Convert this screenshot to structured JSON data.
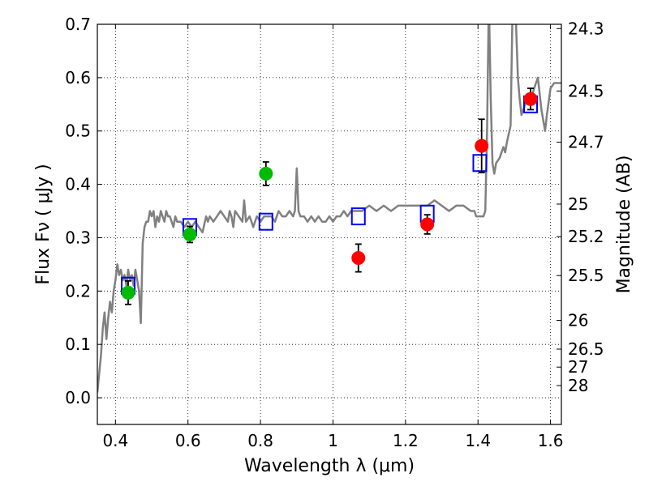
{
  "chart_data": {
    "type": "scatter",
    "xlabel": "Wavelength  λ (μm)",
    "ylabel": "Flux  Fν  ( μJy )",
    "y2label": "Magnitude (AB)",
    "xlim": [
      0.35,
      1.63
    ],
    "ylim": [
      -0.05,
      0.7
    ],
    "x_ticks": [
      0.4,
      0.6,
      0.8,
      1.0,
      1.2,
      1.4,
      1.6
    ],
    "x_tick_labels": [
      "0.4",
      "0.6",
      "0.8",
      "1",
      "1.2",
      "1.4",
      "1.6"
    ],
    "y_ticks": [
      0.0,
      0.1,
      0.2,
      0.3,
      0.4,
      0.5,
      0.6,
      0.7
    ],
    "y_tick_labels": [
      "0.0",
      "0.1",
      "0.2",
      "0.3",
      "0.4",
      "0.5",
      "0.6",
      "0.7"
    ],
    "magnitude_ticks": [
      {
        "label": "24.3",
        "flux": 0.692
      },
      {
        "label": "24.5",
        "flux": 0.575
      },
      {
        "label": "24.7",
        "flux": 0.479
      },
      {
        "label": "25",
        "flux": 0.363
      },
      {
        "label": "25.2",
        "flux": 0.302
      },
      {
        "label": "25.5",
        "flux": 0.229
      },
      {
        "label": "26",
        "flux": 0.145
      },
      {
        "label": "26.5",
        "flux": 0.0912
      },
      {
        "label": "27",
        "flux": 0.0575
      },
      {
        "label": "28",
        "flux": 0.0229
      }
    ],
    "grid": true,
    "series": [
      {
        "kind": "line",
        "color": "#808080",
        "points": [
          [
            0.35,
            0.01
          ],
          [
            0.36,
            0.08
          ],
          [
            0.365,
            0.13
          ],
          [
            0.37,
            0.16
          ],
          [
            0.375,
            0.11
          ],
          [
            0.38,
            0.15
          ],
          [
            0.385,
            0.18
          ],
          [
            0.39,
            0.16
          ],
          [
            0.395,
            0.2
          ],
          [
            0.4,
            0.22
          ],
          [
            0.405,
            0.25
          ],
          [
            0.41,
            0.23
          ],
          [
            0.415,
            0.24
          ],
          [
            0.42,
            0.22
          ],
          [
            0.425,
            0.23
          ],
          [
            0.43,
            0.21
          ],
          [
            0.435,
            0.24
          ],
          [
            0.44,
            0.22
          ],
          [
            0.445,
            0.23
          ],
          [
            0.45,
            0.21
          ],
          [
            0.455,
            0.24
          ],
          [
            0.46,
            0.22
          ],
          [
            0.465,
            0.2
          ],
          [
            0.47,
            0.14
          ],
          [
            0.475,
            0.29
          ],
          [
            0.48,
            0.32
          ],
          [
            0.485,
            0.33
          ],
          [
            0.49,
            0.33
          ],
          [
            0.495,
            0.35
          ],
          [
            0.5,
            0.34
          ],
          [
            0.505,
            0.35
          ],
          [
            0.51,
            0.32
          ],
          [
            0.515,
            0.34
          ],
          [
            0.52,
            0.33
          ],
          [
            0.525,
            0.35
          ],
          [
            0.53,
            0.34
          ],
          [
            0.535,
            0.33
          ],
          [
            0.54,
            0.35
          ],
          [
            0.545,
            0.34
          ],
          [
            0.55,
            0.34
          ],
          [
            0.555,
            0.33
          ],
          [
            0.56,
            0.32
          ],
          [
            0.565,
            0.34
          ],
          [
            0.57,
            0.33
          ],
          [
            0.58,
            0.33
          ],
          [
            0.59,
            0.32
          ],
          [
            0.6,
            0.33
          ],
          [
            0.61,
            0.32
          ],
          [
            0.62,
            0.33
          ],
          [
            0.63,
            0.32
          ],
          [
            0.64,
            0.31
          ],
          [
            0.65,
            0.34
          ],
          [
            0.655,
            0.33
          ],
          [
            0.66,
            0.34
          ],
          [
            0.67,
            0.33
          ],
          [
            0.68,
            0.34
          ],
          [
            0.69,
            0.35
          ],
          [
            0.7,
            0.34
          ],
          [
            0.71,
            0.33
          ],
          [
            0.715,
            0.35
          ],
          [
            0.72,
            0.34
          ],
          [
            0.725,
            0.32
          ],
          [
            0.73,
            0.35
          ],
          [
            0.74,
            0.34
          ],
          [
            0.75,
            0.33
          ],
          [
            0.755,
            0.37
          ],
          [
            0.76,
            0.33
          ],
          [
            0.77,
            0.34
          ],
          [
            0.78,
            0.32
          ],
          [
            0.79,
            0.34
          ],
          [
            0.8,
            0.33
          ],
          [
            0.81,
            0.34
          ],
          [
            0.82,
            0.34
          ],
          [
            0.83,
            0.34
          ],
          [
            0.84,
            0.33
          ],
          [
            0.85,
            0.35
          ],
          [
            0.86,
            0.34
          ],
          [
            0.87,
            0.34
          ],
          [
            0.88,
            0.35
          ],
          [
            0.89,
            0.34
          ],
          [
            0.895,
            0.35
          ],
          [
            0.9,
            0.43
          ],
          [
            0.905,
            0.35
          ],
          [
            0.91,
            0.34
          ],
          [
            0.92,
            0.34
          ],
          [
            0.93,
            0.33
          ],
          [
            0.94,
            0.34
          ],
          [
            0.95,
            0.33
          ],
          [
            0.96,
            0.34
          ],
          [
            0.97,
            0.33
          ],
          [
            0.98,
            0.33
          ],
          [
            0.99,
            0.34
          ],
          [
            1.0,
            0.33
          ],
          [
            1.01,
            0.34
          ],
          [
            1.02,
            0.34
          ],
          [
            1.03,
            0.35
          ],
          [
            1.04,
            0.34
          ],
          [
            1.05,
            0.35
          ],
          [
            1.06,
            0.35
          ],
          [
            1.08,
            0.35
          ],
          [
            1.1,
            0.36
          ],
          [
            1.12,
            0.35
          ],
          [
            1.14,
            0.36
          ],
          [
            1.16,
            0.35
          ],
          [
            1.18,
            0.36
          ],
          [
            1.2,
            0.36
          ],
          [
            1.22,
            0.36
          ],
          [
            1.24,
            0.36
          ],
          [
            1.26,
            0.36
          ],
          [
            1.28,
            0.37
          ],
          [
            1.3,
            0.36
          ],
          [
            1.32,
            0.35
          ],
          [
            1.34,
            0.36
          ],
          [
            1.36,
            0.36
          ],
          [
            1.38,
            0.35
          ],
          [
            1.39,
            0.35
          ],
          [
            1.395,
            0.34
          ],
          [
            1.41,
            0.34
          ],
          [
            1.415,
            0.34
          ],
          [
            1.42,
            0.35
          ],
          [
            1.425,
            0.5
          ],
          [
            1.43,
            0.75
          ],
          [
            1.435,
            0.56
          ],
          [
            1.44,
            0.44
          ],
          [
            1.445,
            0.42
          ],
          [
            1.45,
            0.44
          ],
          [
            1.46,
            0.45
          ],
          [
            1.47,
            0.47
          ],
          [
            1.475,
            0.46
          ],
          [
            1.48,
            0.48
          ],
          [
            1.49,
            0.51
          ],
          [
            1.495,
            0.72
          ],
          [
            1.5,
            0.8
          ],
          [
            1.505,
            0.7
          ],
          [
            1.51,
            0.6
          ],
          [
            1.515,
            0.56
          ],
          [
            1.52,
            0.53
          ],
          [
            1.53,
            0.55
          ],
          [
            1.54,
            0.56
          ],
          [
            1.55,
            0.57
          ],
          [
            1.56,
            0.59
          ],
          [
            1.565,
            0.6
          ],
          [
            1.57,
            0.57
          ],
          [
            1.575,
            0.54
          ],
          [
            1.58,
            0.52
          ],
          [
            1.585,
            0.5
          ],
          [
            1.59,
            0.53
          ],
          [
            1.6,
            0.58
          ],
          [
            1.61,
            0.59
          ],
          [
            1.62,
            0.59
          ],
          [
            1.63,
            0.59
          ]
        ]
      },
      {
        "kind": "model-box",
        "color": "#0000ff",
        "points": [
          [
            0.435,
            0.21
          ],
          [
            0.605,
            0.32
          ],
          [
            0.815,
            0.33
          ],
          [
            1.07,
            0.34
          ],
          [
            1.26,
            0.345
          ],
          [
            1.405,
            0.44
          ],
          [
            1.545,
            0.55
          ]
        ]
      },
      {
        "kind": "observed",
        "color": "#00bb00",
        "points": [
          {
            "x": 0.435,
            "y": 0.197,
            "err": 0.022
          },
          {
            "x": 0.605,
            "y": 0.306,
            "err": 0.015
          },
          {
            "x": 0.815,
            "y": 0.42,
            "err": 0.022
          }
        ]
      },
      {
        "kind": "observed",
        "color": "#ff0000",
        "points": [
          {
            "x": 1.07,
            "y": 0.262,
            "err": 0.026
          },
          {
            "x": 1.26,
            "y": 0.325,
            "err": 0.018
          },
          {
            "x": 1.41,
            "y": 0.472,
            "err": 0.05
          },
          {
            "x": 1.545,
            "y": 0.56,
            "err": 0.02
          }
        ]
      }
    ]
  }
}
